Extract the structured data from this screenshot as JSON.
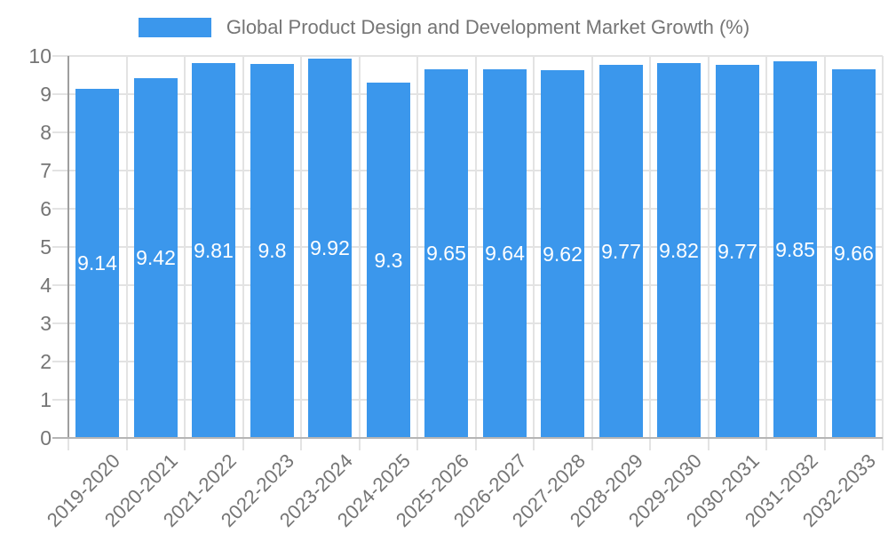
{
  "chart_data": {
    "type": "bar",
    "title": "Global Product Design and Development Market Growth (%)",
    "categories": [
      "2019-2020",
      "2020-2021",
      "2021-2022",
      "2022-2023",
      "2023-2024",
      "2024-2025",
      "2025-2026",
      "2026-2027",
      "2027-2028",
      "2028-2029",
      "2029-2030",
      "2030-2031",
      "2031-2032",
      "2032-2033"
    ],
    "values": [
      9.14,
      9.42,
      9.81,
      9.8,
      9.92,
      9.3,
      9.65,
      9.64,
      9.62,
      9.77,
      9.82,
      9.77,
      9.85,
      9.66
    ],
    "xlabel": "",
    "ylabel": "",
    "ylim": [
      0,
      10
    ],
    "ytick_step": 1,
    "yticks": [
      0,
      1,
      2,
      3,
      4,
      5,
      6,
      7,
      8,
      9,
      10
    ],
    "grid": true,
    "legend_position": "top",
    "value_labels_position": "inside-center"
  },
  "legend": {
    "label": "Global Product Design and Development Market Growth (%)"
  },
  "colors": {
    "bar": "#3b97ec",
    "grid": "#e3e3e3",
    "axis_line": "#9e9e9e",
    "baseline": "#b5b5b5",
    "tick_text": "#757575",
    "value_text": "#ffffff",
    "background": "#ffffff"
  }
}
